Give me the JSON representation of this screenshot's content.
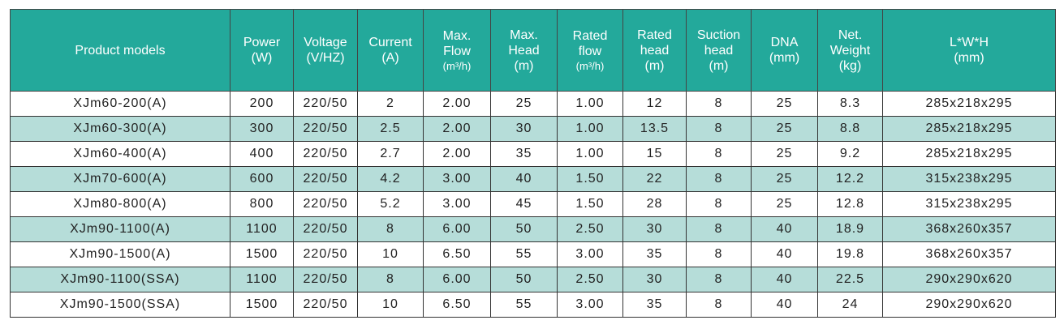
{
  "table": {
    "headers": [
      [
        "Product models"
      ],
      [
        "Power",
        "(W)"
      ],
      [
        "Voltage",
        "(V/HZ)"
      ],
      [
        "Current",
        "(A)"
      ],
      [
        "Max.",
        "Flow",
        "(m³/h)"
      ],
      [
        "Max.",
        "Head",
        "(m)"
      ],
      [
        "Rated",
        "flow",
        "(m³/h)"
      ],
      [
        "Rated",
        "head",
        "(m)"
      ],
      [
        "Suction",
        "head",
        "(m)"
      ],
      [
        "DNA",
        "(mm)"
      ],
      [
        "Net.",
        "Weight",
        "(kg)"
      ],
      [
        "L*W*H",
        "(mm)"
      ]
    ],
    "rows": [
      [
        "XJm60-200(A)",
        "200",
        "220/50",
        "2",
        "2.00",
        "25",
        "1.00",
        "12",
        "8",
        "25",
        "8.3",
        "285x218x295"
      ],
      [
        "XJm60-300(A)",
        "300",
        "220/50",
        "2.5",
        "2.00",
        "30",
        "1.00",
        "13.5",
        "8",
        "25",
        "8.8",
        "285x218x295"
      ],
      [
        "XJm60-400(A)",
        "400",
        "220/50",
        "2.7",
        "2.00",
        "35",
        "1.00",
        "15",
        "8",
        "25",
        "9.2",
        "285x218x295"
      ],
      [
        "XJm70-600(A)",
        "600",
        "220/50",
        "4.2",
        "3.00",
        "40",
        "1.50",
        "22",
        "8",
        "25",
        "12.2",
        "315x238x295"
      ],
      [
        "XJm80-800(A)",
        "800",
        "220/50",
        "5.2",
        "3.00",
        "45",
        "1.50",
        "28",
        "8",
        "25",
        "12.8",
        "315x238x295"
      ],
      [
        "XJm90-1100(A)",
        "1100",
        "220/50",
        "8",
        "6.00",
        "50",
        "2.50",
        "30",
        "8",
        "40",
        "18.9",
        "368x260x357"
      ],
      [
        "XJm90-1500(A)",
        "1500",
        "220/50",
        "10",
        "6.50",
        "55",
        "3.00",
        "35",
        "8",
        "40",
        "19.8",
        "368x260x357"
      ],
      [
        "XJm90-1100(SSA)",
        "1100",
        "220/50",
        "8",
        "6.00",
        "50",
        "2.50",
        "30",
        "8",
        "40",
        "22.5",
        "290x290x620"
      ],
      [
        "XJm90-1500(SSA)",
        "1500",
        "220/50",
        "10",
        "6.50",
        "55",
        "3.00",
        "35",
        "8",
        "40",
        "24",
        "290x290x620"
      ]
    ]
  }
}
